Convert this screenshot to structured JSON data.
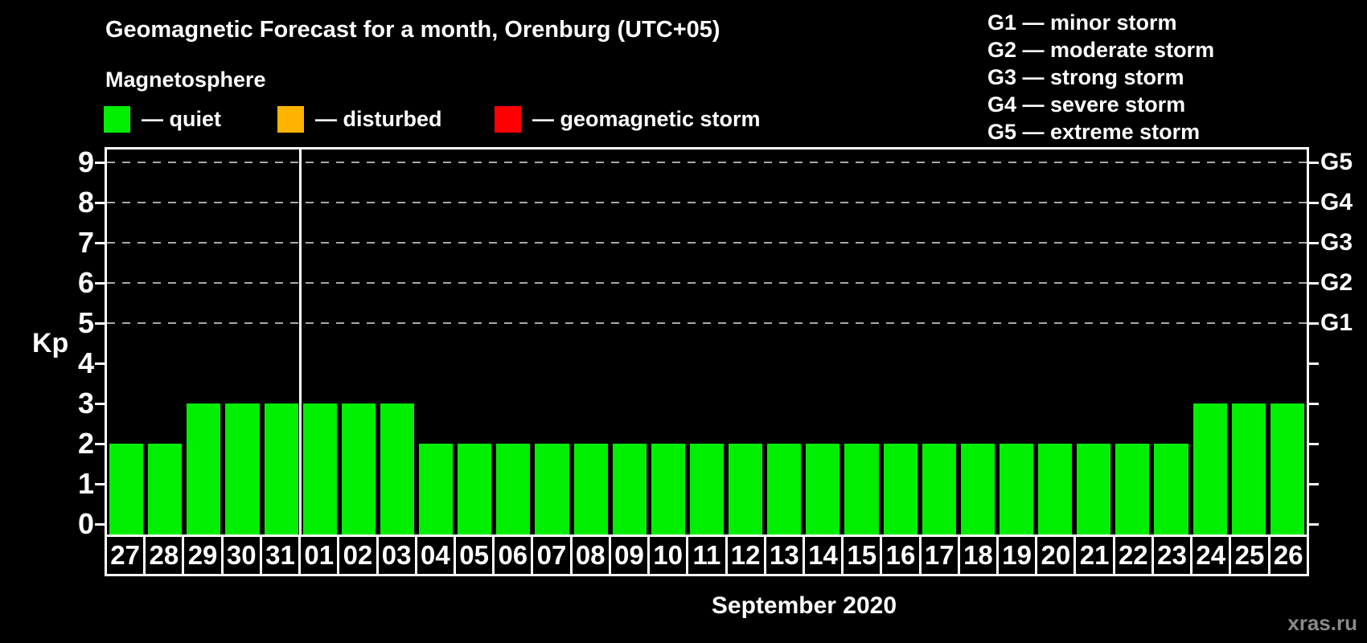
{
  "header": {
    "title": "Geomagnetic Forecast for a month, Orenburg (UTC+05)",
    "subtitle": "Magnetosphere"
  },
  "legend": {
    "items": [
      {
        "key": "quiet",
        "label": "— quiet",
        "color": "#00ef00"
      },
      {
        "key": "disturbed",
        "label": "— disturbed",
        "color": "#ffb400"
      },
      {
        "key": "storm",
        "label": "— geomagnetic storm",
        "color": "#ff0000"
      }
    ]
  },
  "g_legend": {
    "items": [
      "G1 — minor storm",
      "G2 — moderate storm",
      "G3 — strong storm",
      "G4 — severe storm",
      "G5 — extreme storm"
    ]
  },
  "chart_data": {
    "type": "bar",
    "title": "Geomagnetic Forecast for a month, Orenburg (UTC+05)",
    "ylabel": "Kp",
    "xlabel": "September 2020",
    "categories": [
      "27",
      "28",
      "29",
      "30",
      "31",
      "01",
      "02",
      "03",
      "04",
      "05",
      "06",
      "07",
      "08",
      "09",
      "10",
      "11",
      "12",
      "13",
      "14",
      "15",
      "16",
      "17",
      "18",
      "19",
      "20",
      "21",
      "22",
      "23",
      "24",
      "25",
      "26"
    ],
    "values": [
      2,
      2,
      3,
      3,
      3,
      3,
      3,
      3,
      2,
      2,
      2,
      2,
      2,
      2,
      2,
      2,
      2,
      2,
      2,
      2,
      2,
      2,
      2,
      2,
      2,
      2,
      2,
      2,
      3,
      3,
      3
    ],
    "bar_color": "#00ef00",
    "ylim": [
      0,
      9.4
    ],
    "yticks": [
      0,
      1,
      2,
      3,
      4,
      5,
      6,
      7,
      8,
      9
    ],
    "gridlines": [
      5,
      6,
      7,
      8,
      9
    ],
    "right_axis": [
      {
        "value": 5,
        "label": "G1"
      },
      {
        "value": 6,
        "label": "G2"
      },
      {
        "value": 7,
        "label": "G3"
      },
      {
        "value": 8,
        "label": "G4"
      },
      {
        "value": 9,
        "label": "G5"
      }
    ],
    "month_divider_after": "31",
    "grid": "dashed-horizontal",
    "legend_position": "top"
  },
  "footer": {
    "month_label": "September 2020",
    "watermark": "xras.ru"
  }
}
